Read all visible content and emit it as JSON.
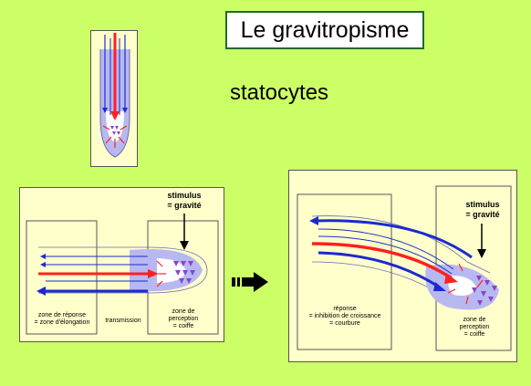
{
  "title": "Le gravitropisme",
  "subtitle": "statocytes",
  "colors": {
    "background": "#ccff66",
    "panel": "#ffffcc",
    "growth_arrow": "#ff2020",
    "auxin_arrow": "#1a2ad0",
    "statocytes": "#8844cc",
    "tissue": "#b8b8f0"
  },
  "left_panel": {
    "stimulus_label": "stimulus\n= gravité",
    "zone_response_label": "zone de réponse\n= zone d'élongation",
    "transmission_label": "transmission",
    "zone_perception_label": "zone de\nperception\n= coiffe"
  },
  "right_panel": {
    "stimulus_label": "stimulus\n= gravité",
    "response_label": "réponse\n= inhibition de croissance\n= courbure",
    "zone_perception_label": "zone de\nperception\n= coiffe"
  },
  "transition_arrow": "right-arrow-icon"
}
